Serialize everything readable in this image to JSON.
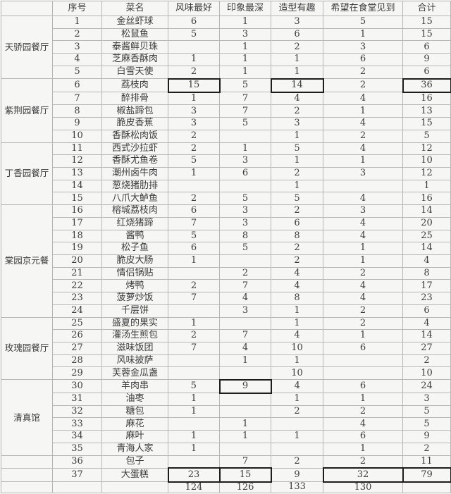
{
  "style": {
    "background_color": "#f4f4f3",
    "grid_border_color": "#b7b7b5",
    "highlight_box_border_color": "#1d1d1d",
    "text_color": "#3c3c3c"
  },
  "chart_data": {
    "type": "table",
    "title": "",
    "columns": [
      "",
      "序号",
      "菜名",
      "风味最好",
      "印象最深",
      "造型有趣",
      "希望在食堂见到",
      "合计"
    ],
    "groups": [
      {
        "name": "天骄园餐厅",
        "start": 1,
        "end": 5
      },
      {
        "name": "紫荆园餐厅",
        "start": 6,
        "end": 10
      },
      {
        "name": "丁香园餐厅",
        "start": 11,
        "end": 15
      },
      {
        "name": "棠园京元餐",
        "start": 16,
        "end": 24
      },
      {
        "name": "玫瑰园餐厅",
        "start": 25,
        "end": 29
      },
      {
        "name": "清真馆",
        "start": 30,
        "end": 35
      },
      {
        "name": "",
        "start": 36,
        "end": 36
      },
      {
        "name": "",
        "start": 37,
        "end": 37
      }
    ],
    "rows": [
      {
        "no": "1",
        "dish": "金丝虾球",
        "values": [
          "6",
          "1",
          "3",
          "5",
          "15"
        ],
        "boxed": []
      },
      {
        "no": "2",
        "dish": "松鼠鱼",
        "values": [
          "5",
          "3",
          "6",
          "1",
          "15"
        ],
        "boxed": []
      },
      {
        "no": "3",
        "dish": "泰酱鲜贝珠",
        "values": [
          "",
          "1",
          "2",
          "3",
          "6"
        ],
        "boxed": []
      },
      {
        "no": "4",
        "dish": "芝麻香酥肉",
        "values": [
          "1",
          "1",
          "1",
          "6",
          "9"
        ],
        "boxed": []
      },
      {
        "no": "5",
        "dish": "白雪天使",
        "values": [
          "2",
          "1",
          "1",
          "2",
          "6"
        ],
        "boxed": []
      },
      {
        "no": "6",
        "dish": "荔枝肉",
        "values": [
          "15",
          "5",
          "14",
          "2",
          "36"
        ],
        "boxed": [
          0,
          2,
          4
        ]
      },
      {
        "no": "7",
        "dish": "醉排骨",
        "values": [
          "1",
          "7",
          "4",
          "4",
          "16"
        ],
        "boxed": []
      },
      {
        "no": "8",
        "dish": "椒盐蹄包",
        "values": [
          "3",
          "7",
          "2",
          "1",
          "13"
        ],
        "boxed": []
      },
      {
        "no": "9",
        "dish": "脆皮香蕉",
        "values": [
          "3",
          "5",
          "3",
          "4",
          "15"
        ],
        "boxed": []
      },
      {
        "no": "10",
        "dish": "香酥松肉饭",
        "values": [
          "2",
          "",
          "1",
          "2",
          "5"
        ],
        "boxed": []
      },
      {
        "no": "11",
        "dish": "西式沙拉虾",
        "values": [
          "2",
          "1",
          "5",
          "4",
          "12"
        ],
        "boxed": []
      },
      {
        "no": "12",
        "dish": "香酥尤鱼卷",
        "values": [
          "5",
          "3",
          "1",
          "1",
          "10"
        ],
        "boxed": []
      },
      {
        "no": "13",
        "dish": "潮州卤牛肉",
        "values": [
          "1",
          "6",
          "2",
          "3",
          "12"
        ],
        "boxed": []
      },
      {
        "no": "14",
        "dish": "葱烧猪肋排",
        "values": [
          "",
          "",
          "1",
          "",
          "1"
        ],
        "boxed": []
      },
      {
        "no": "15",
        "dish": "八爪大鲈鱼",
        "values": [
          "2",
          "5",
          "5",
          "4",
          "16"
        ],
        "boxed": []
      },
      {
        "no": "16",
        "dish": "榕城荔枝肉",
        "values": [
          "6",
          "3",
          "2",
          "3",
          "14"
        ],
        "boxed": []
      },
      {
        "no": "17",
        "dish": "红烧猪蹄",
        "values": [
          "7",
          "3",
          "6",
          "4",
          "20"
        ],
        "boxed": []
      },
      {
        "no": "18",
        "dish": "酱鸭",
        "values": [
          "5",
          "8",
          "8",
          "4",
          "25"
        ],
        "boxed": []
      },
      {
        "no": "19",
        "dish": "松子鱼",
        "values": [
          "6",
          "5",
          "2",
          "1",
          "14"
        ],
        "boxed": []
      },
      {
        "no": "20",
        "dish": "脆皮大肠",
        "values": [
          "1",
          "",
          "2",
          "1",
          "4"
        ],
        "boxed": []
      },
      {
        "no": "21",
        "dish": "情侣锅贴",
        "values": [
          "",
          "2",
          "4",
          "2",
          "8"
        ],
        "boxed": []
      },
      {
        "no": "22",
        "dish": "烤鸭",
        "values": [
          "2",
          "7",
          "4",
          "4",
          "17"
        ],
        "boxed": []
      },
      {
        "no": "23",
        "dish": "菠萝炒饭",
        "values": [
          "7",
          "4",
          "8",
          "4",
          "23"
        ],
        "boxed": []
      },
      {
        "no": "24",
        "dish": "千层饼",
        "values": [
          "",
          "3",
          "1",
          "2",
          "6"
        ],
        "boxed": []
      },
      {
        "no": "25",
        "dish": "盛夏的果实",
        "values": [
          "1",
          "",
          "1",
          "2",
          "4"
        ],
        "boxed": []
      },
      {
        "no": "26",
        "dish": "灌汤生煎包",
        "values": [
          "2",
          "7",
          "4",
          "1",
          "14"
        ],
        "boxed": []
      },
      {
        "no": "27",
        "dish": "滋味饭团",
        "values": [
          "7",
          "4",
          "10",
          "6",
          "27"
        ],
        "boxed": []
      },
      {
        "no": "28",
        "dish": "风味披萨",
        "values": [
          "",
          "1",
          "1",
          "",
          "2"
        ],
        "boxed": []
      },
      {
        "no": "29",
        "dish": "芙蓉金瓜盏",
        "values": [
          "",
          "",
          "10",
          "",
          "10"
        ],
        "boxed": []
      },
      {
        "no": "30",
        "dish": "羊肉串",
        "values": [
          "5",
          "9",
          "4",
          "6",
          "24"
        ],
        "boxed": [
          1
        ]
      },
      {
        "no": "31",
        "dish": "油枣",
        "values": [
          "1",
          "",
          "1",
          "1",
          "3"
        ],
        "boxed": []
      },
      {
        "no": "32",
        "dish": "糖包",
        "values": [
          "1",
          "",
          "2",
          "2",
          "5"
        ],
        "boxed": []
      },
      {
        "no": "33",
        "dish": "麻花",
        "values": [
          "",
          "1",
          "",
          "4",
          "5"
        ],
        "boxed": []
      },
      {
        "no": "34",
        "dish": "麻叶",
        "values": [
          "1",
          "1",
          "1",
          "6",
          "9"
        ],
        "boxed": []
      },
      {
        "no": "35",
        "dish": "青海人家",
        "values": [
          "1",
          "",
          "",
          "1",
          "2"
        ],
        "boxed": []
      },
      {
        "no": "36",
        "dish": "包子",
        "values": [
          "",
          "7",
          "2",
          "2",
          "11"
        ],
        "boxed": []
      },
      {
        "no": "37",
        "dish": "大蛋糕",
        "values": [
          "23",
          "15",
          "9",
          "32",
          "79"
        ],
        "boxed": [
          0,
          1,
          3,
          4
        ]
      }
    ],
    "footer": [
      "",
      "",
      "",
      "124",
      "126",
      "133",
      "130",
      ""
    ]
  }
}
